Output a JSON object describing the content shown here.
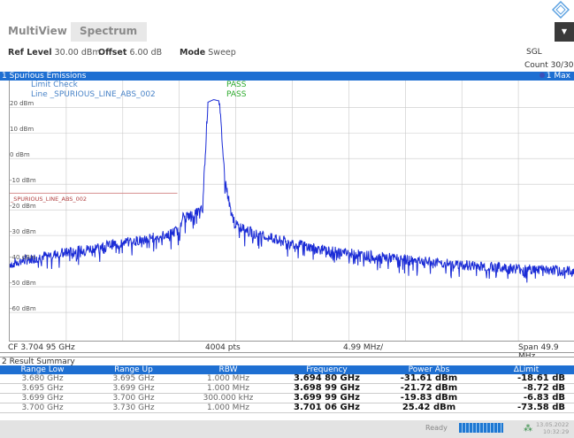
{
  "tabs": {
    "multiview": "MultiView",
    "star": "*",
    "spectrum": "Spectrum"
  },
  "header": {
    "ref_level_label": "Ref Level",
    "ref_level_value": "30.00 dBm",
    "offset_label": "Offset",
    "offset_value": "6.00 dB",
    "mode_label": "Mode",
    "mode_value": "Sweep",
    "sgl": "SGL",
    "count": "Count 30/30"
  },
  "window1": {
    "title": "1 Spurious Emissions",
    "trace_label": "1 Max",
    "limit_check": "Limit Check",
    "limit_line": "Line _SPURIOUS_LINE_ABS_002",
    "pass1": "PASS",
    "pass2": "PASS",
    "limit_name": "_SPURIOUS_LINE_ABS_002"
  },
  "chart_data": {
    "type": "line",
    "y_ticks": [
      "20 dBm",
      "10 dBm",
      "0 dBm",
      "-10 dBm",
      "-20 dBm",
      "-30 dBm",
      "-40 dBm",
      "-50 dBm",
      "-60 dBm"
    ],
    "ylim": [
      -70,
      27
    ],
    "xlim": [
      3.68,
      3.7299
    ],
    "limit_line_dbm": -13.5,
    "series": [
      {
        "x": [
          3.68,
          3.683,
          3.686,
          3.689,
          3.692,
          3.694,
          3.6948,
          3.695,
          3.6951,
          3.696,
          3.697,
          3.6975,
          3.698,
          3.6985,
          3.699,
          3.6995,
          3.7,
          3.702,
          3.705,
          3.708,
          3.712,
          3.716,
          3.72,
          3.725,
          3.7299
        ],
        "y": [
          -41,
          -38,
          -36,
          -33.5,
          -31.5,
          -29.5,
          -28,
          -31,
          -23,
          -22,
          -20,
          22,
          23,
          22.5,
          -8,
          -20,
          -26,
          -30,
          -33,
          -36,
          -38,
          -40,
          -41.5,
          -43,
          -44
        ]
      }
    ],
    "colors": {
      "trace": "#1a2bd6",
      "limit": "#d08080",
      "grid": "#c8c8c8"
    }
  },
  "footer": {
    "cf": "CF 3.704 95 GHz",
    "pts": "4004 pts",
    "div": "4.99 MHz/",
    "span": "Span 49.9 MHz"
  },
  "window2": {
    "title": "2 Result Summary",
    "columns": [
      "Range Low",
      "Range Up",
      "RBW",
      "Frequency",
      "Power Abs",
      "ΔLimit"
    ],
    "rows": [
      [
        "3.680 GHz",
        "3.695 GHz",
        "1.000 MHz",
        "3.694 80 GHz",
        "-31.61 dBm",
        "-18.61 dB"
      ],
      [
        "3.695 GHz",
        "3.699 GHz",
        "1.000 MHz",
        "3.698 99 GHz",
        "-21.72 dBm",
        "-8.72 dB"
      ],
      [
        "3.699 GHz",
        "3.700 GHz",
        "300.000 kHz",
        "3.699 99 GHz",
        "-19.83 dBm",
        "-6.83 dB"
      ],
      [
        "3.700 GHz",
        "3.730 GHz",
        "1.000 MHz",
        "3.701 06 GHz",
        "25.42 dBm",
        "-73.58 dB"
      ]
    ]
  },
  "status": {
    "ready": "Ready",
    "date": "13.05.2022",
    "time": "10:32:29"
  }
}
